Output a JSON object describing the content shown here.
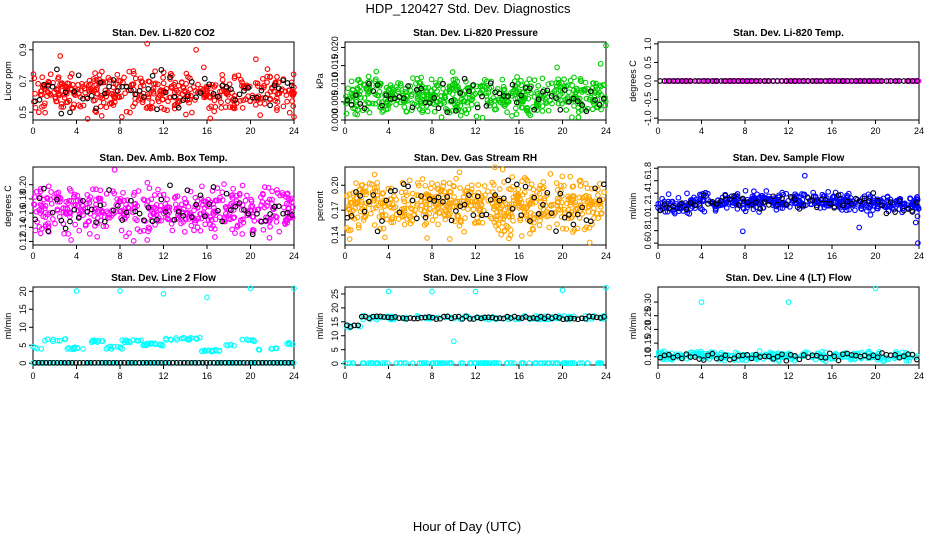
{
  "figure": {
    "title": "HDP_120427  Std. Dev. Diagnostics",
    "xlabel": "Hour of Day (UTC)"
  },
  "chart_data": [
    {
      "type": "scatter",
      "title": "Stan. Dev. Li-820 CO2",
      "ylabel": "Licor ppm",
      "xlim": [
        0,
        24
      ],
      "ylim": [
        0.45,
        0.95
      ],
      "xticks": [
        0,
        4,
        8,
        12,
        16,
        20,
        24
      ],
      "xtick_labels": [
        "0",
        "4",
        "8",
        "12",
        "16",
        "20",
        "24"
      ],
      "yticks": [
        0.5,
        0.7,
        0.9
      ],
      "ytick_labels": [
        "0.5",
        "0.7",
        "0.9"
      ],
      "color": "#ff0000",
      "secondary_color": "#000000",
      "dist": "noise",
      "center": 0.63,
      "spread": 0.065,
      "n": 430,
      "n_black": 60,
      "outliers": [
        [
          2.5,
          0.86
        ],
        [
          10.5,
          0.94
        ],
        [
          15.0,
          0.9
        ],
        [
          16.3,
          0.46
        ],
        [
          24.0,
          0.47
        ],
        [
          20.5,
          0.84
        ]
      ]
    },
    {
      "type": "scatter",
      "title": "Stan. Dev. Li-820 Pressure",
      "ylabel": "kPa",
      "xlim": [
        0,
        24
      ],
      "ylim": [
        0,
        0.0215
      ],
      "xticks": [
        0,
        4,
        8,
        12,
        16,
        20,
        24
      ],
      "xtick_labels": [
        "0",
        "4",
        "8",
        "12",
        "16",
        "20",
        "24"
      ],
      "yticks": [
        0,
        0.005,
        0.01,
        0.015,
        0.02
      ],
      "ytick_labels": [
        "0.000",
        "0.005",
        "0.010",
        "0.015",
        "0.020"
      ],
      "color": "#00cc00",
      "secondary_color": "#000000",
      "dist": "noise",
      "center": 0.0065,
      "spread": 0.0026,
      "n": 520,
      "n_black": 60,
      "outliers": [
        [
          24.0,
          0.0205
        ],
        [
          23.5,
          0.0155
        ],
        [
          19.5,
          0.0145
        ]
      ]
    },
    {
      "type": "scatter",
      "title": "Stan. Dev. Li-820 Temp.",
      "ylabel": "degrees C",
      "xlim": [
        0,
        24
      ],
      "ylim": [
        -1.05,
        1.05
      ],
      "xticks": [
        0,
        4,
        8,
        12,
        16,
        20,
        24
      ],
      "xtick_labels": [
        "0",
        "4",
        "8",
        "12",
        "16",
        "20",
        "24"
      ],
      "yticks": [
        -1,
        -0.5,
        0,
        0.5,
        1
      ],
      "ytick_labels": [
        "-1.0",
        "-0.5",
        "0.0",
        "0.5",
        "1.0"
      ],
      "color": "#ff00ff",
      "secondary_color": "#000000",
      "dist": "constant",
      "center": 0,
      "spread": 0,
      "n": 180,
      "n_black": 60,
      "outliers": []
    },
    {
      "type": "scatter",
      "title": "Stan. Dev. Amb. Box Temp.",
      "ylabel": "degrees C",
      "xlim": [
        0,
        24
      ],
      "ylim": [
        0.115,
        0.225
      ],
      "xticks": [
        0,
        4,
        8,
        12,
        16,
        20,
        24
      ],
      "xtick_labels": [
        "0",
        "4",
        "8",
        "12",
        "16",
        "20",
        "24"
      ],
      "yticks": [
        0.12,
        0.14,
        0.16,
        0.18,
        0.2
      ],
      "ytick_labels": [
        "0.12",
        "0.14",
        "0.16",
        "0.18",
        "0.20"
      ],
      "color": "#ff00ff",
      "secondary_color": "#000000",
      "dist": "noise",
      "center": 0.163,
      "spread": 0.0155,
      "n": 470,
      "n_black": 60,
      "outliers": [
        [
          7.5,
          0.221
        ],
        [
          3.5,
          0.122
        ],
        [
          10.5,
          0.122
        ]
      ]
    },
    {
      "type": "scatter",
      "title": "Stan. Dev. Gas Stream RH",
      "ylabel": "percent",
      "xlim": [
        0,
        24
      ],
      "ylim": [
        0.128,
        0.222
      ],
      "xticks": [
        0,
        4,
        8,
        12,
        16,
        20,
        24
      ],
      "xtick_labels": [
        "0",
        "4",
        "8",
        "12",
        "16",
        "20",
        "24"
      ],
      "yticks": [
        0.14,
        0.17,
        0.2
      ],
      "ytick_labels": [
        "0.14",
        "0.17",
        "0.20"
      ],
      "color": "#ffa500",
      "secondary_color": "#000000",
      "dist": "noise",
      "center": 0.176,
      "spread": 0.016,
      "n": 560,
      "n_black": 60,
      "outliers": [
        [
          14.5,
          0.219
        ],
        [
          22.5,
          0.131
        ]
      ]
    },
    {
      "type": "scatter",
      "title": "Stan. Dev. Sample Flow",
      "ylabel": "ml/min",
      "xlim": [
        0,
        24
      ],
      "ylim": [
        0.57,
        1.82
      ],
      "xticks": [
        0,
        4,
        8,
        12,
        16,
        20,
        24
      ],
      "xtick_labels": [
        "0",
        "4",
        "8",
        "12",
        "16",
        "20",
        "24"
      ],
      "yticks": [
        0.6,
        0.8,
        1.0,
        1.2,
        1.4,
        1.6,
        1.8
      ],
      "ytick_labels": [
        "0.6",
        "0.8",
        "1.0",
        "1.2",
        "1.4",
        "1.6",
        "1.8"
      ],
      "color": "#0000ff",
      "secondary_color": "#000000",
      "dist": "hump",
      "center": 1.2,
      "spread": 0.07,
      "n": 460,
      "n_black": 60,
      "outliers": [
        [
          23.9,
          0.6
        ],
        [
          7.8,
          0.79
        ],
        [
          13.5,
          1.68
        ],
        [
          18.5,
          0.85
        ],
        [
          23.7,
          0.93
        ]
      ]
    },
    {
      "type": "scatter",
      "title": "Stan. Dev. Line 2 Flow",
      "ylabel": "ml/min",
      "xlim": [
        0,
        24
      ],
      "ylim": [
        -0.5,
        21.2
      ],
      "xticks": [
        0,
        4,
        8,
        12,
        16,
        20,
        24
      ],
      "xtick_labels": [
        "0",
        "4",
        "8",
        "12",
        "16",
        "20",
        "24"
      ],
      "yticks": [
        0,
        5,
        10,
        15,
        20
      ],
      "ytick_labels": [
        "0",
        "5",
        "10",
        "15",
        "20"
      ],
      "color": "#00ffff",
      "secondary_color": "#000000",
      "dist": "line2",
      "center": 5.3,
      "spread": 1.0,
      "n": 260,
      "n_black": 70,
      "outliers": [
        [
          4.0,
          20.1
        ],
        [
          8.0,
          20.1
        ],
        [
          12.0,
          19.3
        ],
        [
          16.0,
          18.3
        ],
        [
          20.0,
          20.8
        ],
        [
          24.0,
          20.8
        ]
      ]
    },
    {
      "type": "scatter",
      "title": "Stan. Dev. Line 3 Flow",
      "ylabel": "ml/min",
      "xlim": [
        0,
        24
      ],
      "ylim": [
        -0.5,
        27.5
      ],
      "xticks": [
        0,
        4,
        8,
        12,
        16,
        20,
        24
      ],
      "xtick_labels": [
        "0",
        "4",
        "8",
        "12",
        "16",
        "20",
        "24"
      ],
      "yticks": [
        0,
        5,
        10,
        15,
        20,
        25
      ],
      "ytick_labels": [
        "0",
        "5",
        "10",
        "15",
        "20",
        "25"
      ],
      "color": "#00ffff",
      "secondary_color": "#000000",
      "dist": "line3",
      "center": 16.5,
      "spread": 1.0,
      "n": 220,
      "n_black": 70,
      "outliers": [
        [
          4.0,
          25.9
        ],
        [
          8.0,
          25.9
        ],
        [
          12.0,
          25.9
        ],
        [
          20.0,
          26.3
        ],
        [
          24.0,
          27.2
        ],
        [
          10.0,
          8.0
        ]
      ]
    },
    {
      "type": "scatter",
      "title": "Stan. Dev. Line 4 (LT) Flow",
      "ylabel": "ml/min",
      "xlim": [
        0,
        24
      ],
      "ylim": [
        0.07,
        0.355
      ],
      "xticks": [
        0,
        4,
        8,
        12,
        16,
        20,
        24
      ],
      "xtick_labels": [
        "0",
        "4",
        "8",
        "12",
        "16",
        "20",
        "24"
      ],
      "yticks": [
        0.1,
        0.15,
        0.2,
        0.25,
        0.3
      ],
      "ytick_labels": [
        "0.10",
        "0.15",
        "0.20",
        "0.25",
        "0.30"
      ],
      "color": "#00ffff",
      "secondary_color": "#000000",
      "dist": "noise",
      "center": 0.102,
      "spread": 0.008,
      "n": 280,
      "n_black": 60,
      "outliers": [
        [
          4.0,
          0.3
        ],
        [
          12.0,
          0.3
        ],
        [
          20.0,
          0.35
        ]
      ]
    }
  ]
}
